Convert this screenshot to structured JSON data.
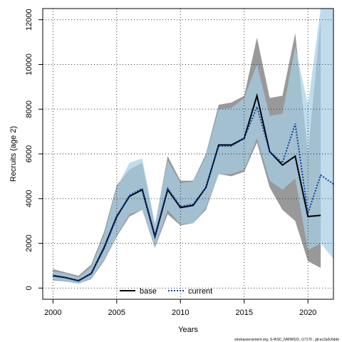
{
  "chart_data": {
    "type": "line",
    "xlabel": "Years",
    "ylabel": "Recruits (age 2)",
    "xlim": [
      1999.2,
      2022.0
    ],
    "ylim": [
      -500,
      12500
    ],
    "x_ticks": [
      2000,
      2005,
      2010,
      2015,
      2020
    ],
    "y_ticks": [
      0,
      2000,
      4000,
      6000,
      8000,
      10000,
      12000
    ],
    "grid": true,
    "legend_position": "bottom-center",
    "x": [
      2000,
      2001,
      2002,
      2003,
      2004,
      2005,
      2006,
      2007,
      2008,
      2009,
      2010,
      2011,
      2012,
      2013,
      2014,
      2015,
      2016,
      2017,
      2018,
      2019,
      2020,
      2021,
      2022
    ],
    "series": [
      {
        "name": "base",
        "style": "solid",
        "color": "#000000",
        "band_color": "#999999",
        "values": [
          560,
          470,
          330,
          650,
          1800,
          3200,
          4100,
          4400,
          2300,
          4400,
          3600,
          3700,
          4500,
          6400,
          6400,
          6700,
          8600,
          6100,
          5500,
          5900,
          3200,
          3250,
          null
        ],
        "upper": [
          850,
          700,
          550,
          1050,
          2500,
          4600,
          5300,
          5600,
          2800,
          5900,
          4800,
          4800,
          6000,
          8200,
          8300,
          8600,
          11200,
          8500,
          8600,
          11400,
          6000,
          12000,
          null
        ],
        "lower": [
          340,
          300,
          200,
          400,
          1200,
          2300,
          3200,
          3500,
          1800,
          3300,
          2800,
          2900,
          3500,
          5100,
          5000,
          5200,
          6500,
          4500,
          3500,
          3000,
          1200,
          900,
          null
        ]
      },
      {
        "name": "current",
        "style": "dotted",
        "color": "#0a3fa0",
        "band_color": "#a6cfe6",
        "values": [
          540,
          460,
          320,
          640,
          1750,
          3150,
          4150,
          4450,
          2350,
          4450,
          3650,
          3750,
          4500,
          6350,
          6350,
          6700,
          8100,
          6100,
          5600,
          7350,
          3350,
          5050,
          4650
        ],
        "upper": [
          750,
          650,
          480,
          950,
          2350,
          4500,
          5600,
          5800,
          2900,
          5700,
          4700,
          4750,
          5900,
          8000,
          8050,
          8500,
          10000,
          7700,
          7800,
          10800,
          8200,
          12500,
          12500
        ],
        "lower": [
          370,
          330,
          210,
          430,
          1250,
          2350,
          3300,
          3500,
          1850,
          3500,
          2850,
          2900,
          3600,
          5100,
          5100,
          5300,
          6700,
          4800,
          4400,
          4900,
          1700,
          2000,
          1300
        ]
      }
    ]
  },
  "footer": "stockassessment.org, S-WSC_NWW023, r17170 , git:ec2a0c6dde"
}
